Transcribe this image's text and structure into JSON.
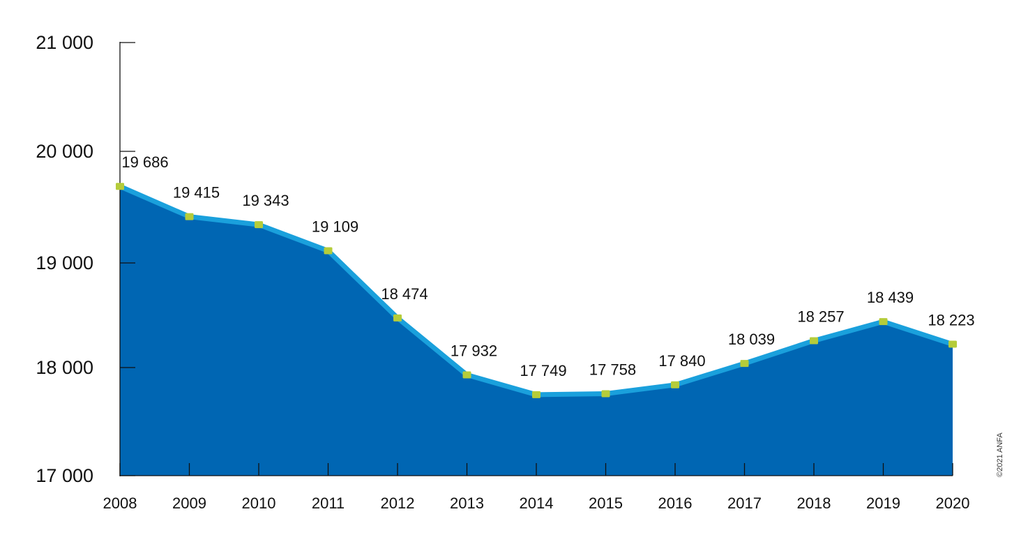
{
  "chart_data": {
    "type": "area",
    "x": [
      "2008",
      "2009",
      "2010",
      "2011",
      "2012",
      "2013",
      "2014",
      "2015",
      "2016",
      "2017",
      "2018",
      "2019",
      "2020"
    ],
    "values": [
      19686,
      19415,
      19343,
      19109,
      18474,
      17932,
      17749,
      17758,
      17840,
      18039,
      18257,
      18439,
      18223
    ],
    "value_labels": [
      "19 686",
      "19 415",
      "19 343",
      "19 109",
      "18 474",
      "17 932",
      "17 749",
      "17 758",
      "17 840",
      "18 039",
      "18 257",
      "18 439",
      "18 223"
    ],
    "y_ticks": [
      17000,
      18000,
      19000,
      20000,
      21000
    ],
    "y_tick_labels": [
      "17 000",
      "18 000",
      "19 000",
      "20 000",
      "21 000"
    ],
    "ylim": [
      17000,
      21000
    ],
    "title": "",
    "xlabel": "",
    "ylabel": "",
    "grid": false,
    "highlight_last_label": true
  },
  "colors": {
    "area_fill": "#0066b3",
    "line": "#1aa0dc",
    "marker": "#b5cc3a",
    "highlight_text": "#e2001a",
    "text": "#111111"
  },
  "copyright": "©2021 ANFA"
}
